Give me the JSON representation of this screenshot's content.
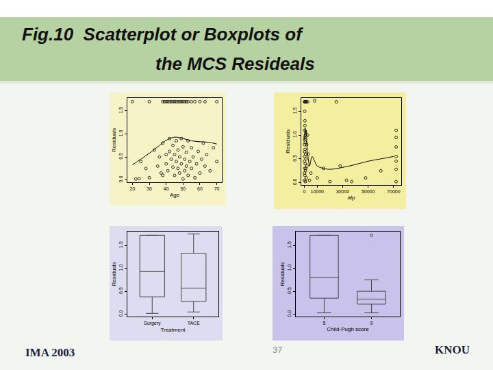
{
  "slide": {
    "title": [
      "Fig.10  Scatterplot or Boxplots of",
      "the MCS Resideals"
    ],
    "footer_left": "IMA 2003",
    "page_number": "37",
    "footer_right": "KNOU"
  },
  "chart_data": [
    {
      "type": "scatter",
      "x_label": "Age",
      "y_label": "Residuals",
      "grid": false,
      "xlim": [
        17,
        73
      ],
      "xticks": [
        20,
        30,
        40,
        50,
        60,
        70
      ],
      "ylim": [
        -0.05,
        1.78
      ],
      "yticks": [
        {
          "value": 0,
          "label": "0.0"
        },
        0.5,
        {
          "value": 1,
          "label": "1.0"
        },
        1.5
      ],
      "series": [
        {
          "type": "scatter",
          "marker": "circle-open",
          "color": "#000000",
          "x": [
            20,
            30,
            38,
            39,
            40,
            41,
            42,
            43,
            44,
            45,
            46,
            47,
            48,
            49,
            50,
            51,
            52,
            53,
            55,
            57,
            60,
            63,
            70,
            22,
            24,
            28,
            33,
            35,
            36,
            37,
            38,
            40,
            40,
            41,
            42,
            42,
            43,
            44,
            44,
            45,
            45,
            46,
            46,
            47,
            47,
            48,
            48,
            49,
            49,
            50,
            50,
            51,
            51,
            52,
            52,
            53,
            53,
            54,
            55,
            55,
            56,
            57,
            58,
            59,
            60,
            61,
            62,
            63,
            64,
            66,
            68,
            70,
            38,
            25,
            30
          ],
          "values": [
            1.7,
            1.7,
            1.7,
            1.7,
            1.7,
            1.7,
            1.7,
            1.7,
            1.7,
            1.7,
            1.7,
            1.7,
            1.7,
            1.7,
            1.7,
            1.7,
            1.7,
            1.7,
            1.7,
            1.7,
            1.7,
            1.7,
            1.7,
            0.02,
            0.03,
            0.25,
            0.65,
            0.3,
            0.5,
            0.15,
            0.8,
            0.55,
            0.35,
            0.2,
            0.9,
            0.62,
            0.45,
            0.75,
            0.28,
            0.1,
            0.55,
            0.85,
            0.4,
            0.65,
            0.25,
            0.15,
            0.5,
            0.9,
            0.35,
            0.02,
            0.72,
            0.45,
            0.2,
            0.6,
            0.3,
            0.85,
            0.1,
            0.4,
            0.7,
            0.25,
            0.5,
            0.05,
            0.35,
            0.62,
            0.15,
            0.45,
            0.8,
            0.3,
            0.55,
            0.2,
            0.7,
            0.4,
            0.1,
            0.4,
            0.05
          ]
        },
        {
          "type": "line",
          "line_style": "solid",
          "color": "#000000",
          "x": [
            20,
            25,
            30,
            35,
            40,
            45,
            50,
            55,
            60,
            65,
            70
          ],
          "values": [
            0.33,
            0.45,
            0.58,
            0.72,
            0.86,
            0.93,
            0.9,
            0.85,
            0.83,
            0.82,
            0.78
          ]
        }
      ]
    },
    {
      "type": "scatter",
      "x_label": "afp",
      "y_label": "Residuals",
      "grid": false,
      "xlim": [
        -2500,
        76000
      ],
      "xticks": [
        0,
        10000,
        30000,
        50000,
        70000
      ],
      "ylim": [
        -0.05,
        1.78
      ],
      "yticks": [
        {
          "value": 0,
          "label": "0.0"
        },
        0.5,
        {
          "value": 1,
          "label": "1.0"
        },
        1.5
      ],
      "series": [
        {
          "type": "scatter",
          "marker": "circle-open",
          "color": "#000000",
          "x": [
            100,
            300,
            600,
            1000,
            1500,
            2500,
            200,
            400,
            150,
            700,
            300,
            100,
            500,
            900,
            200,
            1200,
            50,
            600,
            300,
            800,
            100,
            400,
            1500,
            200,
            700,
            2000,
            3000,
            4000,
            5000,
            1800,
            2500,
            350,
            120,
            650,
            250,
            1100,
            8000,
            10000,
            15000,
            20000,
            25000,
            28000,
            33000,
            37000,
            48000,
            60000,
            72000,
            72000,
            72000,
            72000,
            72000,
            72000,
            72000
          ],
          "values": [
            1.7,
            1.7,
            1.7,
            1.7,
            1.7,
            1.7,
            1.5,
            1.3,
            1.1,
            1.0,
            0.9,
            0.8,
            0.7,
            0.6,
            0.55,
            0.5,
            0.45,
            0.4,
            0.3,
            0.25,
            0.2,
            0.15,
            0.1,
            0.05,
            0.02,
            0.35,
            0.6,
            0.05,
            0.2,
            0.8,
            1.0,
            1.2,
            0.95,
            0.85,
            0.65,
            0.3,
            1.72,
            0.1,
            0.3,
            0.02,
            1.7,
            0.35,
            0.05,
            0.02,
            0.1,
            0.25,
            1.1,
            0.95,
            0.75,
            0.55,
            0.45,
            0.28,
            0.02
          ]
        },
        {
          "type": "line",
          "line_style": "solid",
          "color": "#000000",
          "x": [
            0,
            500,
            1000,
            1500,
            2000,
            3000,
            4000,
            6000,
            8000,
            10000,
            15000,
            20000,
            30000,
            40000,
            50000,
            60000,
            70000
          ],
          "values": [
            0.9,
            1.15,
            1.0,
            1.1,
            0.75,
            0.5,
            0.35,
            0.55,
            0.45,
            0.35,
            0.3,
            0.28,
            0.32,
            0.38,
            0.45,
            0.5,
            0.55
          ]
        }
      ]
    },
    {
      "type": "box",
      "x_label": "Treatment",
      "y_label": "Residuals",
      "grid": false,
      "color": "#444444",
      "categories": [
        "Surgery",
        "TACE"
      ],
      "ylim": [
        -0.05,
        1.8
      ],
      "yticks": [
        {
          "value": 0,
          "label": "0.0"
        },
        0.5,
        {
          "value": 1,
          "label": "1.0"
        },
        1.5
      ],
      "lower": [
        0.02,
        0.05
      ],
      "q1": [
        0.38,
        0.28
      ],
      "median": [
        0.93,
        0.57
      ],
      "q3": [
        1.72,
        1.33
      ],
      "upper": [
        1.72,
        1.75
      ],
      "outliers": [
        [],
        []
      ]
    },
    {
      "type": "box",
      "x_label": "Child-Pugh score",
      "y_label": "Residuals",
      "grid": false,
      "color": "#444444",
      "categories": [
        "5",
        "9"
      ],
      "ylim": [
        -0.05,
        1.8
      ],
      "yticks": [
        {
          "value": 0,
          "label": "0.0"
        },
        0.5,
        {
          "value": 1,
          "label": "1.0"
        },
        1.5
      ],
      "lower": [
        0.03,
        0.03
      ],
      "q1": [
        0.35,
        0.22
      ],
      "median": [
        0.8,
        0.33
      ],
      "q3": [
        1.72,
        0.5
      ],
      "upper": [
        1.72,
        0.75
      ],
      "outliers": [
        [],
        [
          1.72
        ]
      ]
    }
  ]
}
